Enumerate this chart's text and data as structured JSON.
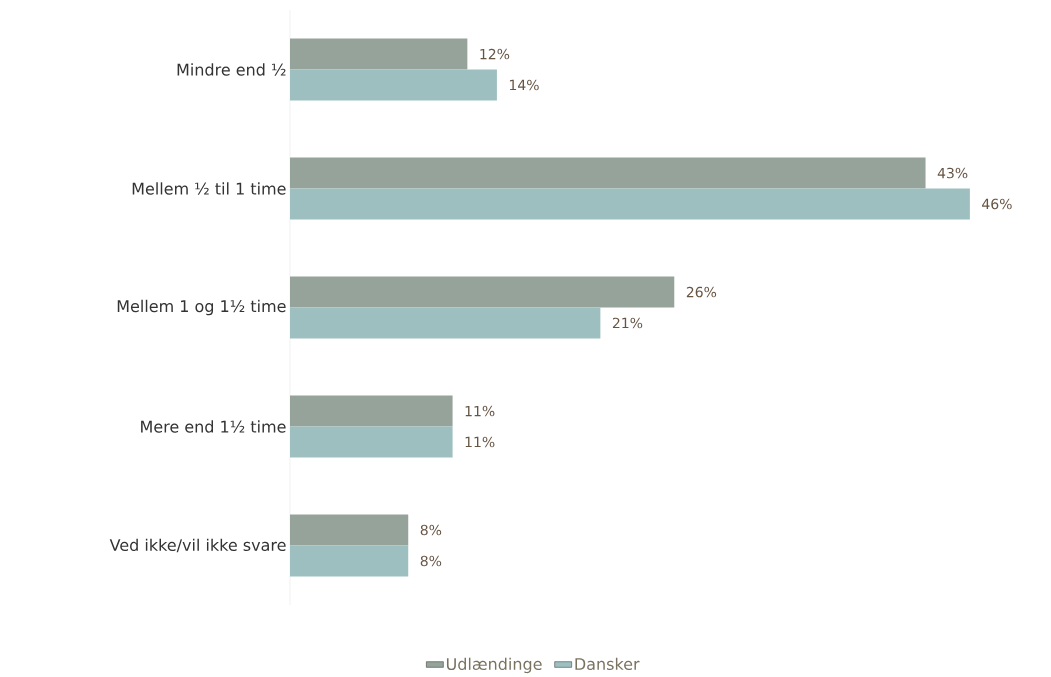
{
  "chart_data": {
    "type": "bar",
    "orientation": "horizontal",
    "categories": [
      "Mindre end ½",
      "Mellem ½ til 1 time",
      "Mellem 1 og 1½ time",
      "Mere end 1½ time",
      "Ved ikke/vil ikke svare"
    ],
    "series": [
      {
        "name": "Udlændinge",
        "color": "#95a39a",
        "values": [
          12,
          43,
          26,
          11,
          8
        ],
        "value_labels": [
          "12%",
          "43%",
          "26%",
          "11%",
          "8%"
        ]
      },
      {
        "name": "Dansker",
        "color": "#9dbfbf",
        "values": [
          14,
          46,
          21,
          11,
          8
        ],
        "value_labels": [
          "14%",
          "46%",
          "21%",
          "11%",
          "8%"
        ]
      }
    ],
    "legend": "bottom"
  }
}
